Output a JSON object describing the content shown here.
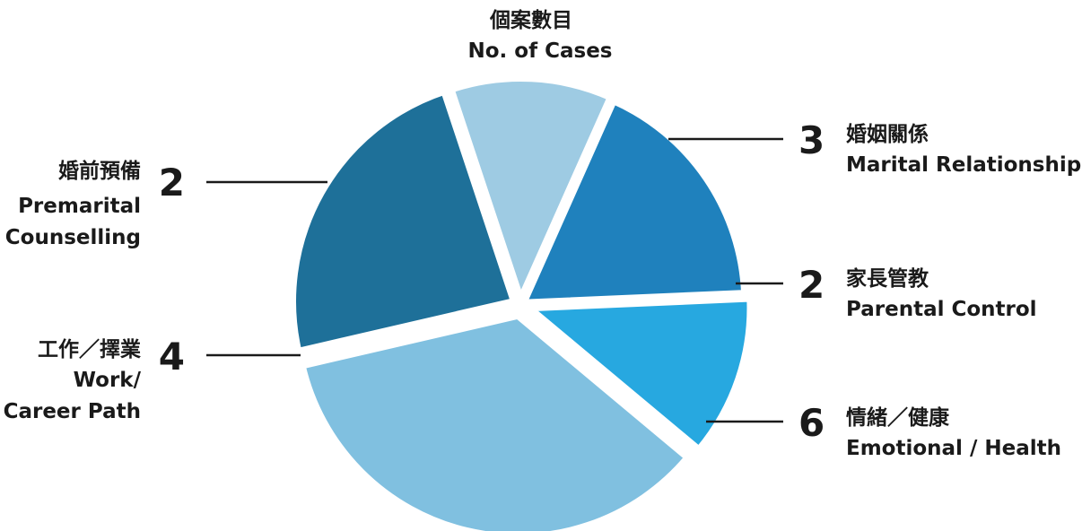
{
  "chart_data": {
    "type": "pie",
    "title": "個案數目",
    "subtitle": "No. of Cases",
    "colors": {
      "marital": "#1f81bd",
      "parental": "#27a8e0",
      "emotional": "#80c0e0",
      "work": "#1e7099",
      "premarital": "#9ecbe3"
    },
    "slices": [
      {
        "key": "marital",
        "value": 3,
        "value_text": "3",
        "label_zh": "婚姻關係",
        "label_en": [
          "Marital Relationship"
        ]
      },
      {
        "key": "parental",
        "value": 2,
        "value_text": "2",
        "label_zh": "家長管教",
        "label_en": [
          "Parental Control"
        ]
      },
      {
        "key": "emotional",
        "value": 6,
        "value_text": "6",
        "label_zh": "情緒／健康",
        "label_en": [
          "Emotional / Health"
        ]
      },
      {
        "key": "work",
        "value": 4,
        "value_text": "4",
        "label_zh": "工作／擇業",
        "label_en": [
          "Work/",
          "Career Path"
        ]
      },
      {
        "key": "premarital",
        "value": 2,
        "value_text": "2",
        "label_zh": "婚前預備",
        "label_en": [
          "Premarital",
          "Counselling"
        ]
      }
    ]
  }
}
